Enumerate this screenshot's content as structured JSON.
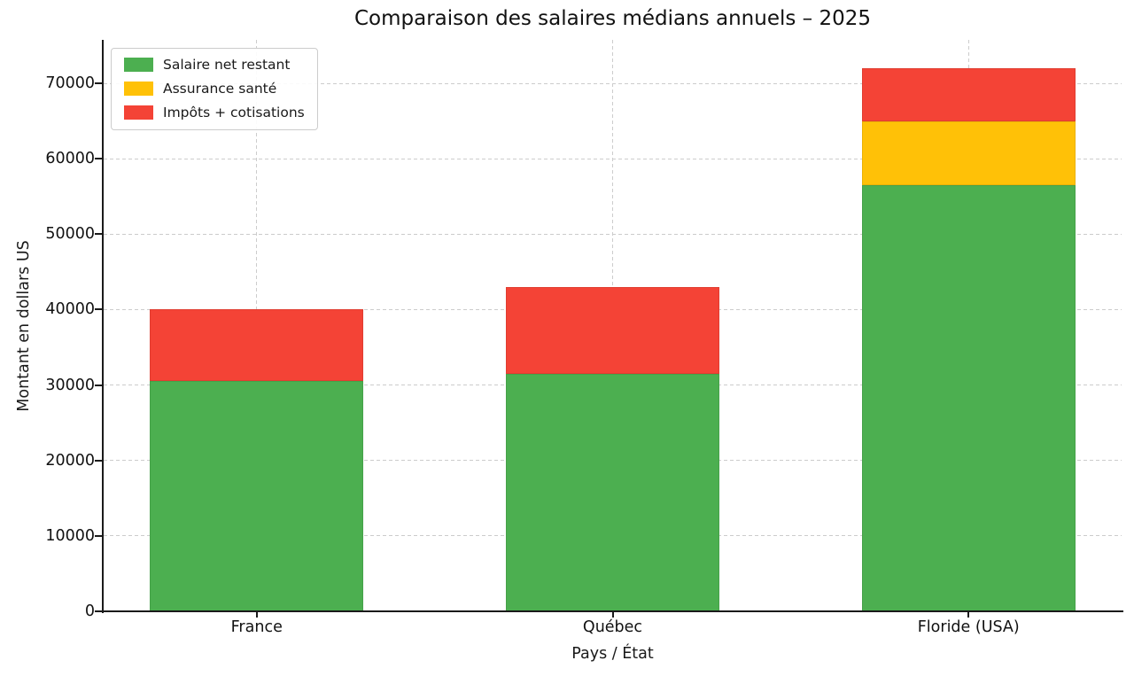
{
  "chart_data": {
    "type": "bar",
    "stacked": true,
    "title": "Comparaison des salaires médians annuels – 2025",
    "xlabel": "Pays / État",
    "ylabel": "Montant en dollars US",
    "categories": [
      "France",
      "Québec",
      "Floride (USA)"
    ],
    "series": [
      {
        "name": "Salaire net restant",
        "color": "#4caf50",
        "values": [
          30500,
          31500,
          56500
        ]
      },
      {
        "name": "Assurance santé",
        "color": "#ffc107",
        "values": [
          0,
          0,
          8500
        ]
      },
      {
        "name": "Impôts + cotisations",
        "color": "#f44336",
        "values": [
          9500,
          11500,
          7000
        ]
      }
    ],
    "yticks": [
      0,
      10000,
      20000,
      30000,
      40000,
      50000,
      60000,
      70000
    ],
    "ylim": [
      0,
      75760
    ],
    "grid": true,
    "grid_style": "dashed",
    "legend_position": "upper left",
    "background_color": "#ffffff",
    "text_color": "#1a1a1a",
    "grid_color": "#cccccc"
  }
}
